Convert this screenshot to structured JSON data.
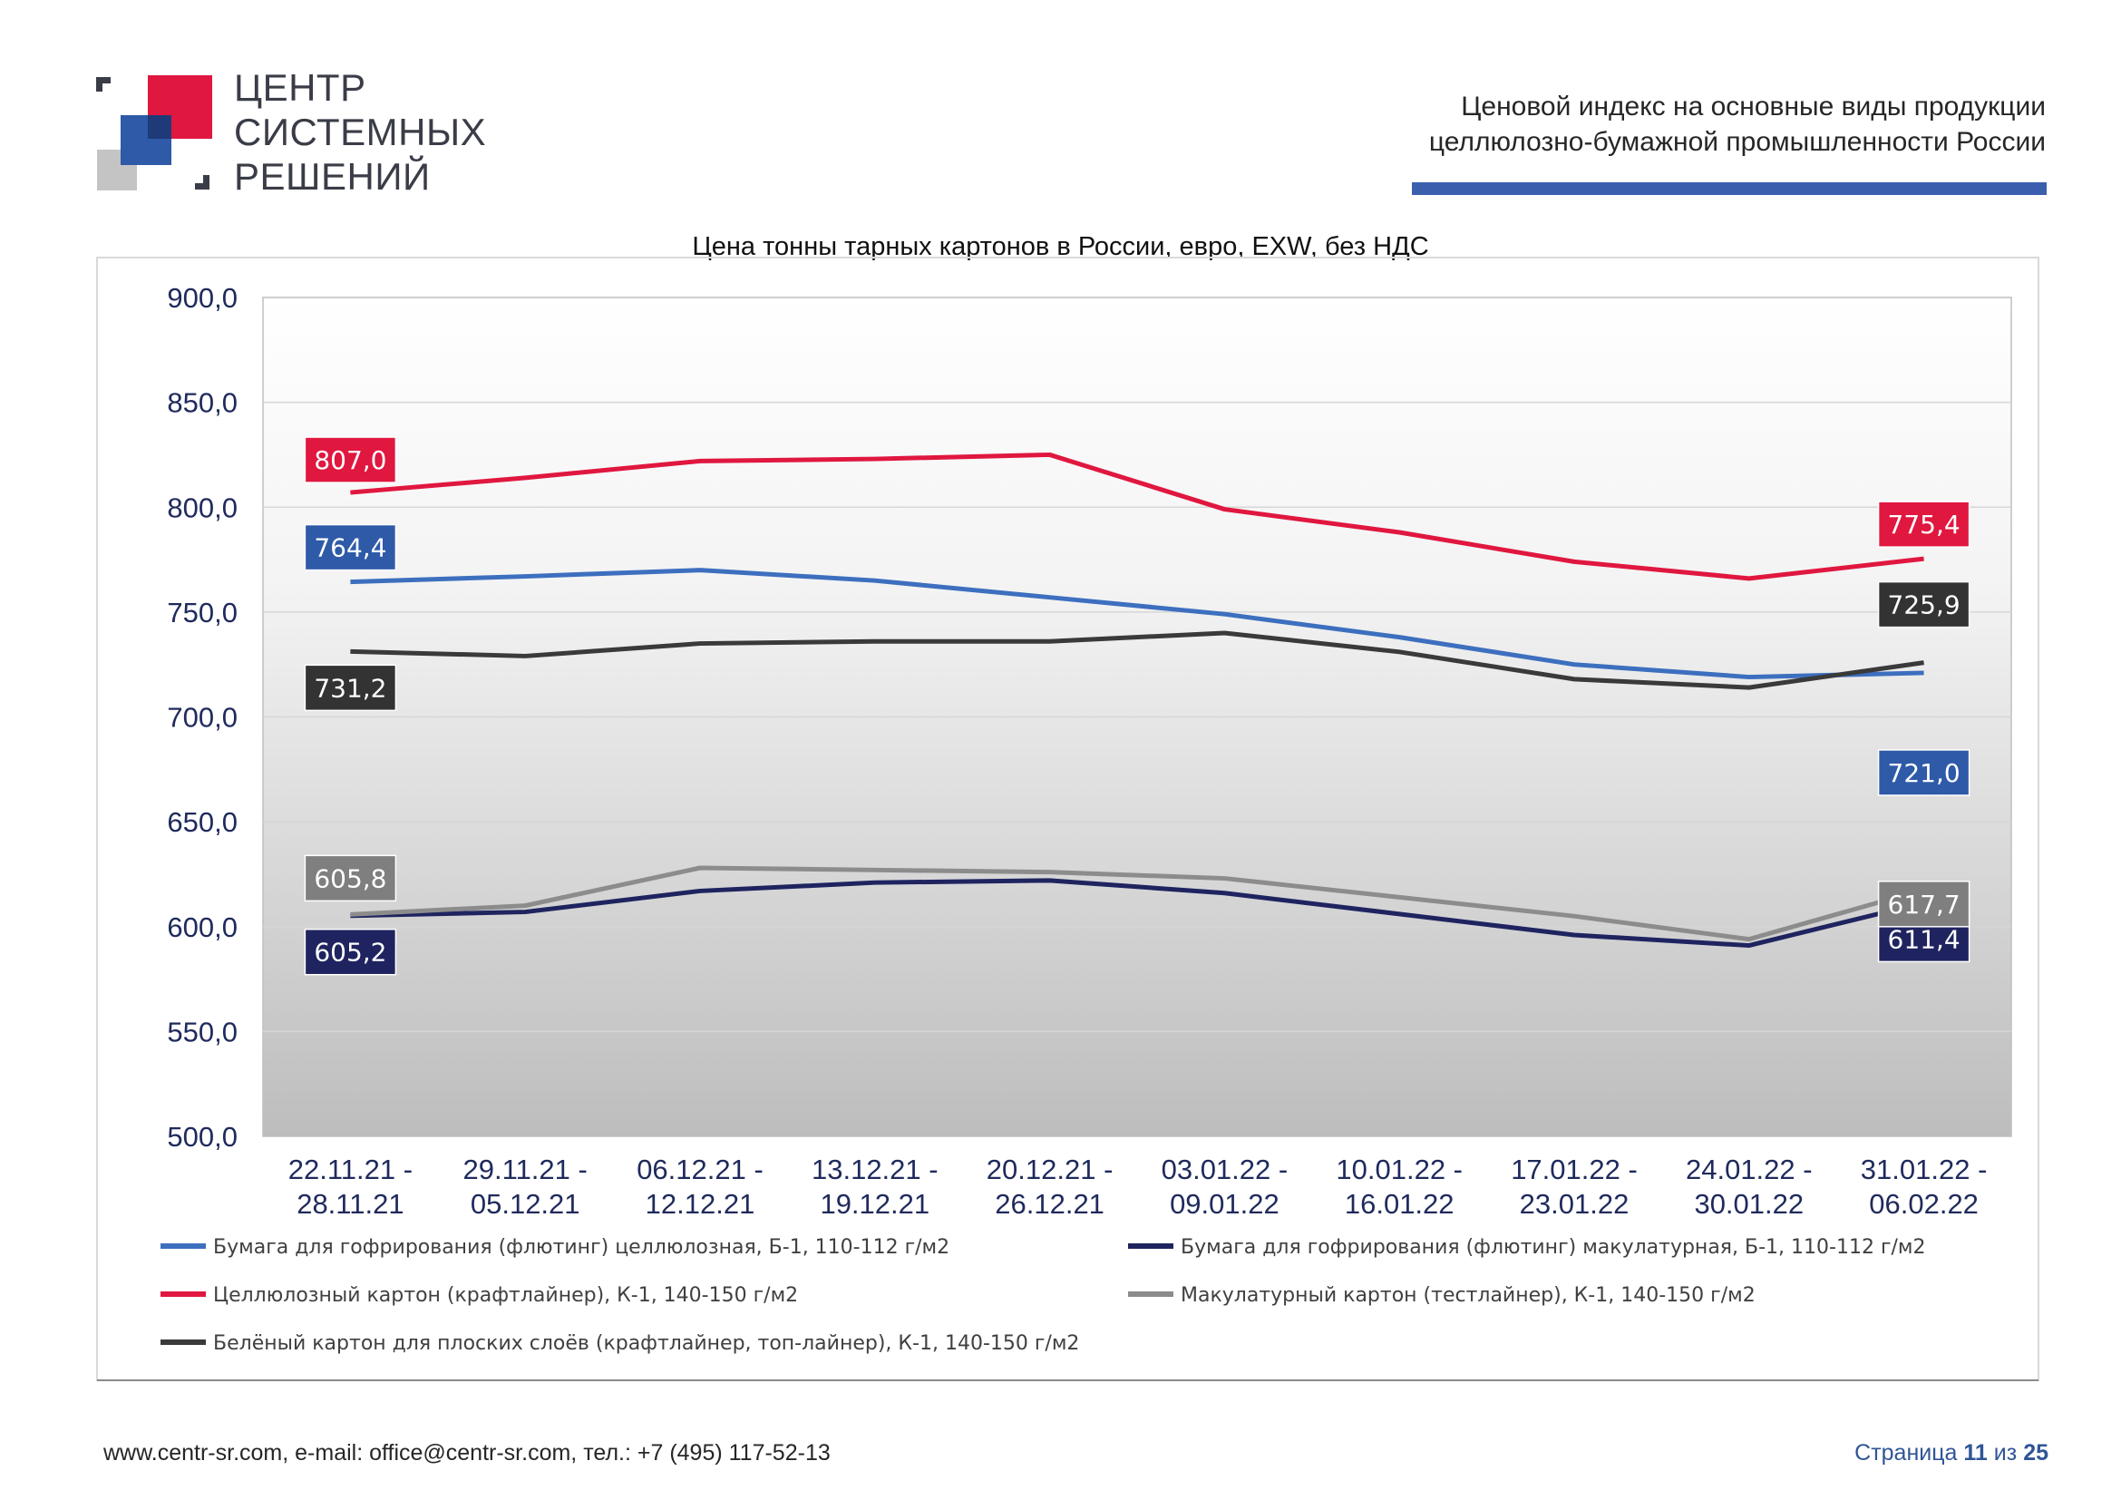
{
  "logo": {
    "lines": [
      "ЦЕНТР",
      "СИСТЕМНЫХ",
      "РЕШЕНИЙ"
    ],
    "colors": {
      "red": "#e0173f",
      "blue": "#2e5aa8",
      "navy": "#1f3a78",
      "grey": "#c4c4c4"
    }
  },
  "header": {
    "line1": "Ценовой  индекс  на  основные виды продукции",
    "line2": "целлюлозно-бумажной промышленности России",
    "bar_color": "#3b5fad"
  },
  "chart_data": {
    "type": "line",
    "title": "Цена тонны тарных картонов в России, евро, EXW, без НДС",
    "xlabel": "",
    "ylabel": "",
    "ylim": [
      500,
      900
    ],
    "yticks": [
      "900,0",
      "850,0",
      "800,0",
      "750,0",
      "700,0",
      "650,0",
      "600,0",
      "550,0",
      "500,0"
    ],
    "grid": true,
    "legend_position": "bottom",
    "categories": [
      [
        "22.11.21 -",
        "28.11.21"
      ],
      [
        "29.11.21 -",
        "05.12.21"
      ],
      [
        "06.12.21 -",
        "12.12.21"
      ],
      [
        "13.12.21 -",
        "19.12.21"
      ],
      [
        "20.12.21 -",
        "26.12.21"
      ],
      [
        "03.01.22 -",
        "09.01.22"
      ],
      [
        "10.01.22 -",
        "16.01.22"
      ],
      [
        "17.01.22 -",
        "23.01.22"
      ],
      [
        "24.01.22 -",
        "30.01.22"
      ],
      [
        "31.01.22 -",
        "06.02.22"
      ]
    ],
    "series": [
      {
        "name": "Бумага для гофрирования (флютинг) целлюлозная, Б-1, 110-112 г/м2",
        "color": "#3d6fbf",
        "values": [
          764.4,
          767,
          770,
          765,
          757,
          749,
          738,
          725,
          719,
          721.0
        ],
        "first_label": "764,4",
        "last_label": "721,0",
        "label_color": "#2e5aa8"
      },
      {
        "name": "Бумага для гофрирования (флютинг) макулатурная, Б-1, 110-112 г/м2",
        "color": "#1f2460",
        "values": [
          605.2,
          607,
          617,
          621,
          622,
          616,
          606,
          596,
          591,
          611.4
        ],
        "first_label": "605,2",
        "last_label": "611,4",
        "label_color": "#1f2460"
      },
      {
        "name": "Целлюлозный картон (крафтлайнер), К-1, 140-150 г/м2",
        "color": "#e0173f",
        "values": [
          807.0,
          814,
          822,
          823,
          825,
          799,
          788,
          774,
          766,
          775.4
        ],
        "first_label": "807,0",
        "last_label": "775,4",
        "label_color": "#e0173f"
      },
      {
        "name": "Макулатурный картон (тестлайнер), К-1, 140-150 г/м2",
        "color": "#8c8c8c",
        "values": [
          605.8,
          610,
          628,
          627,
          626,
          623,
          614,
          605,
          594,
          617.7
        ],
        "first_label": "605,8",
        "last_label": "617,7",
        "label_color": "#7f7f7f"
      },
      {
        "name": "Белёный картон для плоских слоёв (крафтлайнер, топ-лайнер), К-1, 140-150 г/м2",
        "color": "#3a3a3a",
        "values": [
          731.2,
          729,
          735,
          736,
          736,
          740,
          731,
          718,
          714,
          725.9
        ],
        "first_label": "731,2",
        "last_label": "725,9",
        "label_color": "#333333"
      }
    ]
  },
  "footer": {
    "contacts": "www.centr-sr.com, e-mail: office@centr-sr.com, тел.: +7 (495) 117-52-13",
    "page_prefix": "Страница",
    "page_current": "11",
    "page_sep": "из",
    "page_total": "25"
  }
}
